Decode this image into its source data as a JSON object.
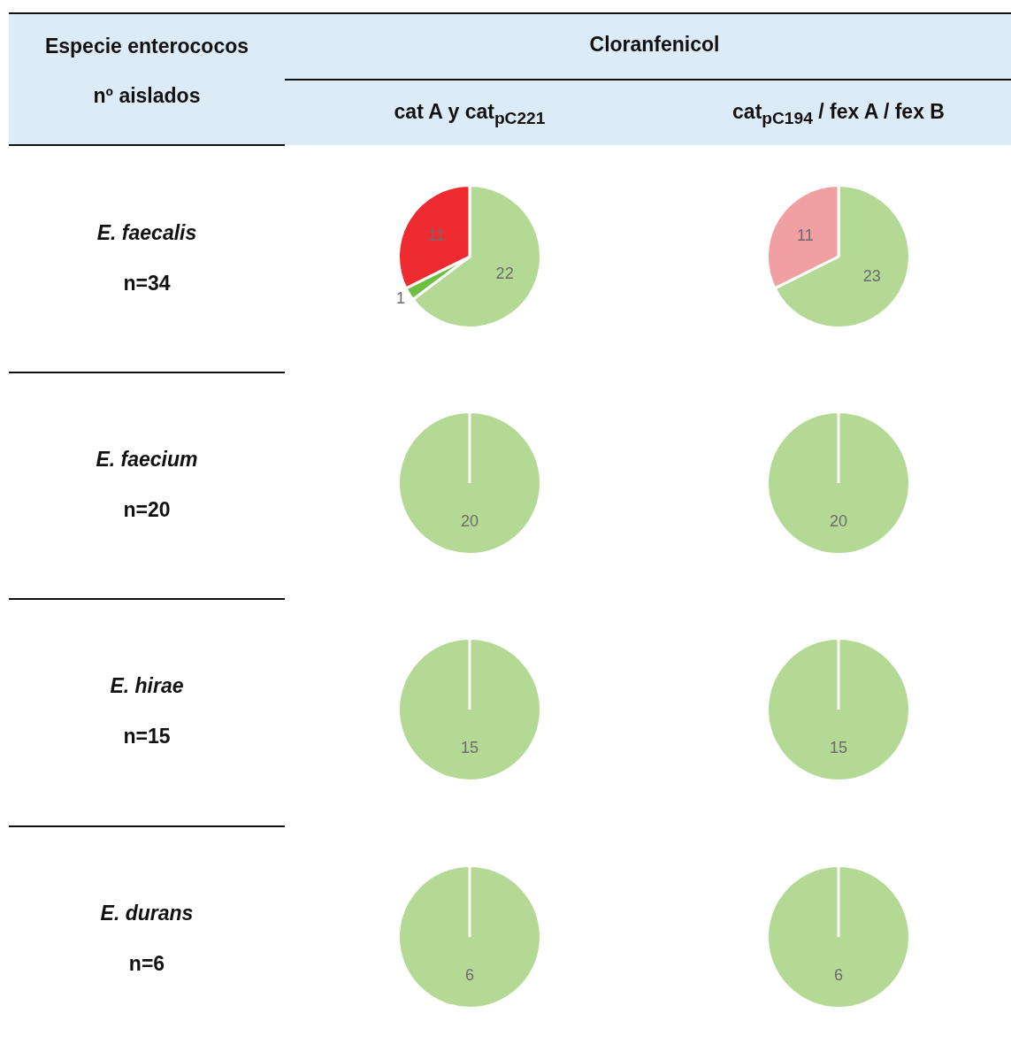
{
  "chart_data": [
    {
      "type": "other",
      "title": "Cloranfenicol",
      "annotations": [
        "Especie enterococos",
        "nº aislados",
        "cat A y cat$_{pC221}$",
        "cat$_{pC194}$ / fex A / fex B",
        "E. faecalis",
        "n=34",
        "E. faecium",
        "n=20",
        "E. hirae",
        "n=15",
        "E. durans",
        "n=6"
      ]
    },
    {
      "type": "pie",
      "categories": [
        null,
        null,
        null
      ],
      "values": [
        22,
        1,
        11
      ],
      "colors": [
        "#b3d995",
        "#6cbf3f",
        "#ee2b30"
      ],
      "data_labels": true
    },
    {
      "type": "pie",
      "categories": [
        null,
        null
      ],
      "values": [
        23,
        11
      ],
      "colors": [
        "#b3d995",
        "#f0a0a2"
      ],
      "data_labels": true
    },
    {
      "type": "pie",
      "categories": [
        null
      ],
      "values": [
        20
      ],
      "colors": [
        "#b3d995"
      ],
      "data_labels": true
    },
    {
      "type": "pie",
      "categories": [
        null
      ],
      "values": [
        20
      ],
      "colors": [
        "#b3d995"
      ],
      "data_labels": true
    },
    {
      "type": "pie",
      "categories": [
        null
      ],
      "values": [
        15
      ],
      "colors": [
        "#b3d995"
      ],
      "data_labels": true
    },
    {
      "type": "pie",
      "categories": [
        null
      ],
      "values": [
        15
      ],
      "colors": [
        "#b3d995"
      ],
      "data_labels": true
    },
    {
      "type": "pie",
      "categories": [
        null
      ],
      "values": [
        6
      ],
      "colors": [
        "#b3d995"
      ],
      "data_labels": true
    },
    {
      "type": "pie",
      "categories": [
        null
      ],
      "values": [
        6
      ],
      "colors": [
        "#b3d995"
      ],
      "data_labels": true
    }
  ]
}
